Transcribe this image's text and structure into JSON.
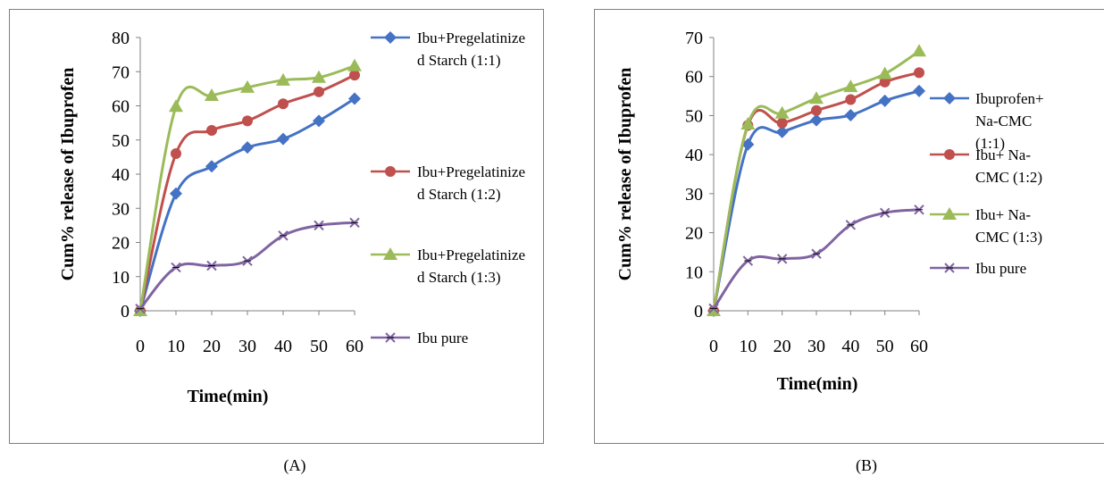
{
  "captions": [
    "(A)",
    "(B)"
  ],
  "chart_data": [
    {
      "type": "line",
      "title": "",
      "xlabel": "Time(min)",
      "ylabel": "Cum% release of Ibuprofen",
      "x": [
        0,
        10,
        20,
        30,
        40,
        50,
        60
      ],
      "xlim": [
        0,
        60
      ],
      "ylim": [
        0,
        80
      ],
      "yticks": [
        0,
        10,
        20,
        30,
        40,
        50,
        60,
        70,
        80
      ],
      "grid": false,
      "legend_position": "right",
      "series": [
        {
          "name": "Ibu+Pregelatinize d Starch (1:1)",
          "color": "#4472c4",
          "marker": "diamond",
          "values": [
            0,
            34.3,
            42.3,
            47.8,
            50.3,
            55.6,
            62.1
          ]
        },
        {
          "name": "Ibu+Pregelatinize d Starch (1:2)",
          "color": "#c0504d",
          "marker": "circle",
          "values": [
            0,
            46.0,
            52.8,
            55.6,
            60.6,
            64.1,
            69.0
          ]
        },
        {
          "name": "Ibu+Pregelatinize d Starch (1:3)",
          "color": "#9bbb59",
          "marker": "triangle",
          "values": [
            0,
            59.8,
            63.0,
            65.4,
            67.5,
            68.3,
            71.7
          ]
        },
        {
          "name": "Ibu pure",
          "color": "#8064a2",
          "marker": "x",
          "values": [
            0.6,
            12.7,
            13.2,
            14.6,
            22.0,
            25.0,
            25.8
          ]
        }
      ]
    },
    {
      "type": "line",
      "title": "",
      "xlabel": "Time(min)",
      "ylabel": "Cum% release of Ibuprofen",
      "x": [
        0,
        10,
        20,
        30,
        40,
        50,
        60
      ],
      "xlim": [
        0,
        60
      ],
      "ylim": [
        0,
        70
      ],
      "yticks": [
        0,
        10,
        20,
        30,
        40,
        50,
        60,
        70
      ],
      "grid": false,
      "legend_position": "right",
      "series": [
        {
          "name": "Ibuprofen+ Na-CMC (1:1)",
          "color": "#4472c4",
          "marker": "diamond",
          "values": [
            0,
            42.6,
            45.8,
            48.8,
            50.1,
            53.8,
            56.3
          ]
        },
        {
          "name": "Ibu+ Na- CMC (1:2)",
          "color": "#c0504d",
          "marker": "circle",
          "values": [
            0,
            47.5,
            48.1,
            51.3,
            54.1,
            58.6,
            61.0
          ]
        },
        {
          "name": "Ibu+ Na- CMC (1:3)",
          "color": "#9bbb59",
          "marker": "triangle",
          "values": [
            0,
            47.8,
            50.6,
            54.4,
            57.4,
            60.7,
            66.5
          ]
        },
        {
          "name": "Ibu pure",
          "color": "#8064a2",
          "marker": "x",
          "values": [
            0.6,
            12.8,
            13.3,
            14.6,
            22.0,
            25.1,
            25.9
          ]
        }
      ]
    }
  ]
}
